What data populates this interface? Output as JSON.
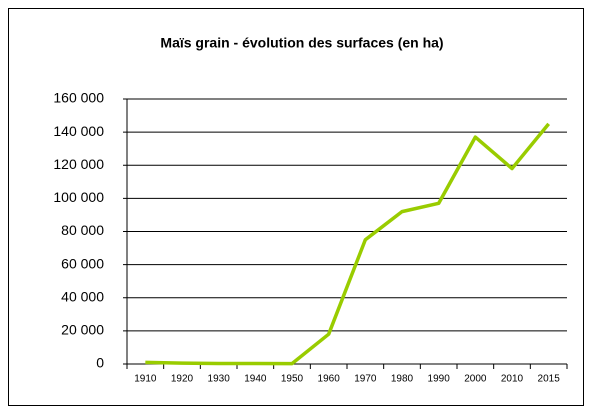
{
  "chart_data": {
    "type": "line",
    "title": "Maïs grain - évolution des surfaces (en ha)",
    "categories": [
      "1910",
      "1920",
      "1930",
      "1940",
      "1950",
      "1960",
      "1970",
      "1980",
      "1990",
      "2000",
      "2010",
      "2015"
    ],
    "series": [
      {
        "color": "#99cc00",
        "values": [
          1000,
          500,
          300,
          300,
          200,
          18000,
          75000,
          92000,
          97000,
          137000,
          118000,
          145000
        ]
      }
    ],
    "ylim": [
      0,
      160000
    ],
    "yticks": [
      0,
      {
        "value": 20000,
        "label": "20 000"
      },
      {
        "value": 40000,
        "label": "40 000"
      },
      {
        "value": 60000,
        "label": "60 000"
      },
      {
        "value": 80000,
        "label": "80 000"
      },
      {
        "value": 100000,
        "label": "100 000"
      },
      {
        "value": 120000,
        "label": "120 000"
      },
      {
        "value": 140000,
        "label": "140 000"
      },
      {
        "value": 160000,
        "label": "160 000"
      }
    ],
    "grid": true
  }
}
